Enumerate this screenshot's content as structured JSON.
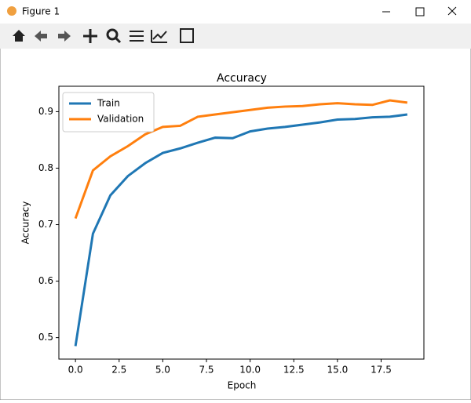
{
  "window": {
    "title": "Figure 1"
  },
  "chart_data": {
    "type": "line",
    "title": "Accuracy",
    "x_label": "Epoch",
    "y_label": "Accuracy",
    "x": [
      0,
      1,
      2,
      3,
      4,
      5,
      6,
      7,
      8,
      9,
      10,
      11,
      12,
      13,
      14,
      15,
      16,
      17,
      18,
      19
    ],
    "series": [
      {
        "name": "Train",
        "color": "#1f77b4",
        "values": [
          0.485,
          0.684,
          0.752,
          0.786,
          0.809,
          0.827,
          0.835,
          0.845,
          0.854,
          0.853,
          0.865,
          0.87,
          0.873,
          0.877,
          0.881,
          0.886,
          0.887,
          0.89,
          0.891,
          0.895
        ]
      },
      {
        "name": "Validation",
        "color": "#ff7f0e",
        "values": [
          0.711,
          0.796,
          0.821,
          0.839,
          0.86,
          0.873,
          0.875,
          0.891,
          0.895,
          0.899,
          0.903,
          0.907,
          0.909,
          0.91,
          0.913,
          0.915,
          0.913,
          0.912,
          0.92,
          0.916
        ]
      }
    ],
    "xlim": [
      -0.95,
      19.95
    ],
    "xticks": [
      {
        "value": 0,
        "label": "0.0"
      },
      2.5,
      {
        "value": 5,
        "label": "5.0"
      },
      7.5,
      {
        "value": 10,
        "label": "10.0"
      },
      12.5,
      {
        "value": 15,
        "label": "15.0"
      },
      17.5
    ],
    "ylim": [
      0.462,
      0.945
    ],
    "yticks": [
      0.5,
      0.6,
      0.7,
      0.8,
      0.9
    ],
    "grid": false,
    "legend": "upper left"
  }
}
